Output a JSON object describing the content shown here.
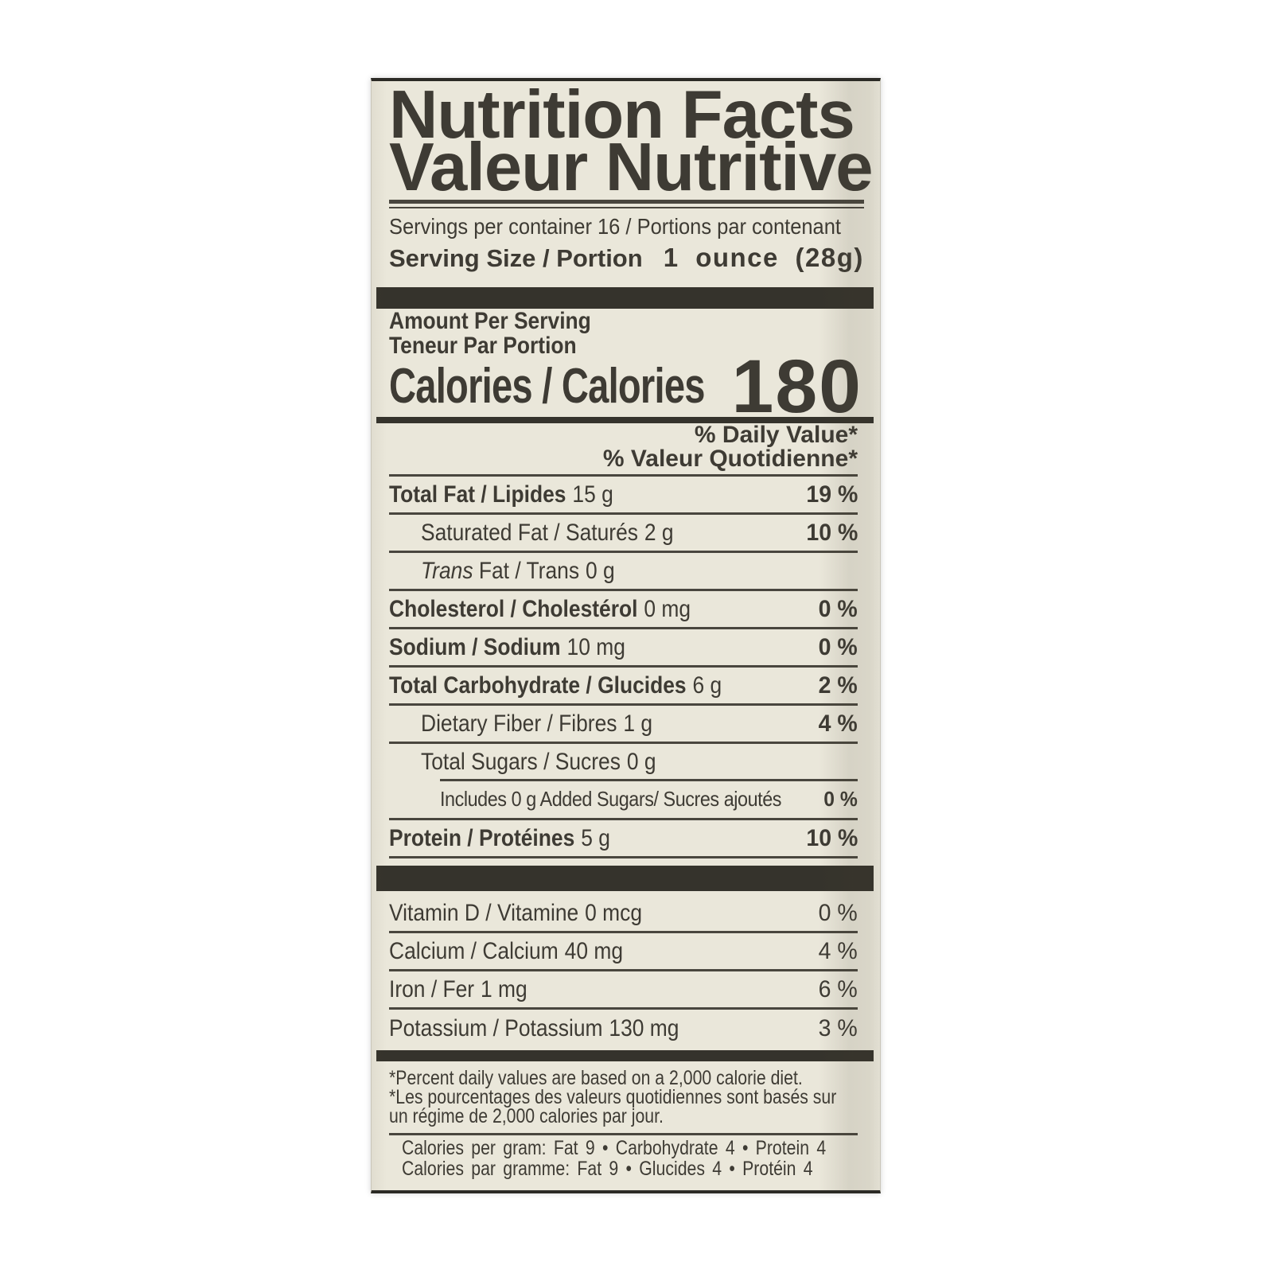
{
  "colors": {
    "ink": "#3e3b34",
    "rule": "#49463e",
    "divider_bar": "#35332c",
    "label_background": "#eae7da",
    "page_background": "#ffffff"
  },
  "label": {
    "title_en": "Nutrition Facts",
    "title_fr": "Valeur Nutritive",
    "servings_per_container": "Servings per container 16 / Portions par contenant",
    "serving_size_label": "Serving Size / Portion",
    "serving_size_value": "1 ounce (28g)",
    "amount_per_serving_en": "Amount Per Serving",
    "amount_per_serving_fr": "Teneur Par Portion",
    "calories_label": "Calories / Calories",
    "calories_value": "180",
    "daily_value_header_en": "% Daily Value*",
    "daily_value_header_fr": "% Valeur Quotidienne*",
    "nutrients": [
      {
        "name": "Total Fat / Lipides",
        "amount": "15 g",
        "dv": "19 %"
      },
      {
        "name": "Saturated Fat / Saturés",
        "amount": "2 g",
        "dv": "10 %"
      },
      {
        "italic": "Trans",
        "name": " Fat / Trans",
        "amount": "0 g",
        "dv": ""
      },
      {
        "name": "Cholesterol / Cholestérol",
        "amount": "0 mg",
        "dv": "0 %"
      },
      {
        "name": "Sodium / Sodium",
        "amount": "10 mg",
        "dv": "0 %"
      },
      {
        "name": "Total Carbohydrate / Glucides",
        "amount": "6 g",
        "dv": "2 %"
      },
      {
        "name": "Dietary Fiber / Fibres",
        "amount": "1 g",
        "dv": "4 %"
      },
      {
        "name": "Total Sugars / Sucres",
        "amount": "0 g",
        "dv": ""
      },
      {
        "name": "Includes 0 g Added Sugars/ Sucres ajoutés",
        "amount": "",
        "dv": "0 %"
      },
      {
        "name": "Protein / Protéines",
        "amount": "5 g",
        "dv": "10 %"
      }
    ],
    "vitamins": [
      {
        "name": "Vitamin D / Vitamine",
        "amount": "0 mcg",
        "dv": "0 %"
      },
      {
        "name": "Calcium / Calcium",
        "amount": "40 mg",
        "dv": "4 %"
      },
      {
        "name": "Iron / Fer",
        "amount": "1 mg",
        "dv": "6 %"
      },
      {
        "name": "Potassium / Potassium",
        "amount": "130 mg",
        "dv": "3 %"
      }
    ],
    "footnote_lines": [
      "*Percent daily values are based on a 2,000 calorie diet.",
      "*Les pourcentages des valeurs quotidiennes sont basés sur",
      "un régime de 2,000 calories par jour."
    ],
    "calories_per_gram_en": "Calories per gram: Fat 9 • Carbohydrate 4 • Protein 4",
    "calories_per_gram_fr": "Calories par gramme: Fat 9 • Glucides 4 • Protéin 4"
  }
}
